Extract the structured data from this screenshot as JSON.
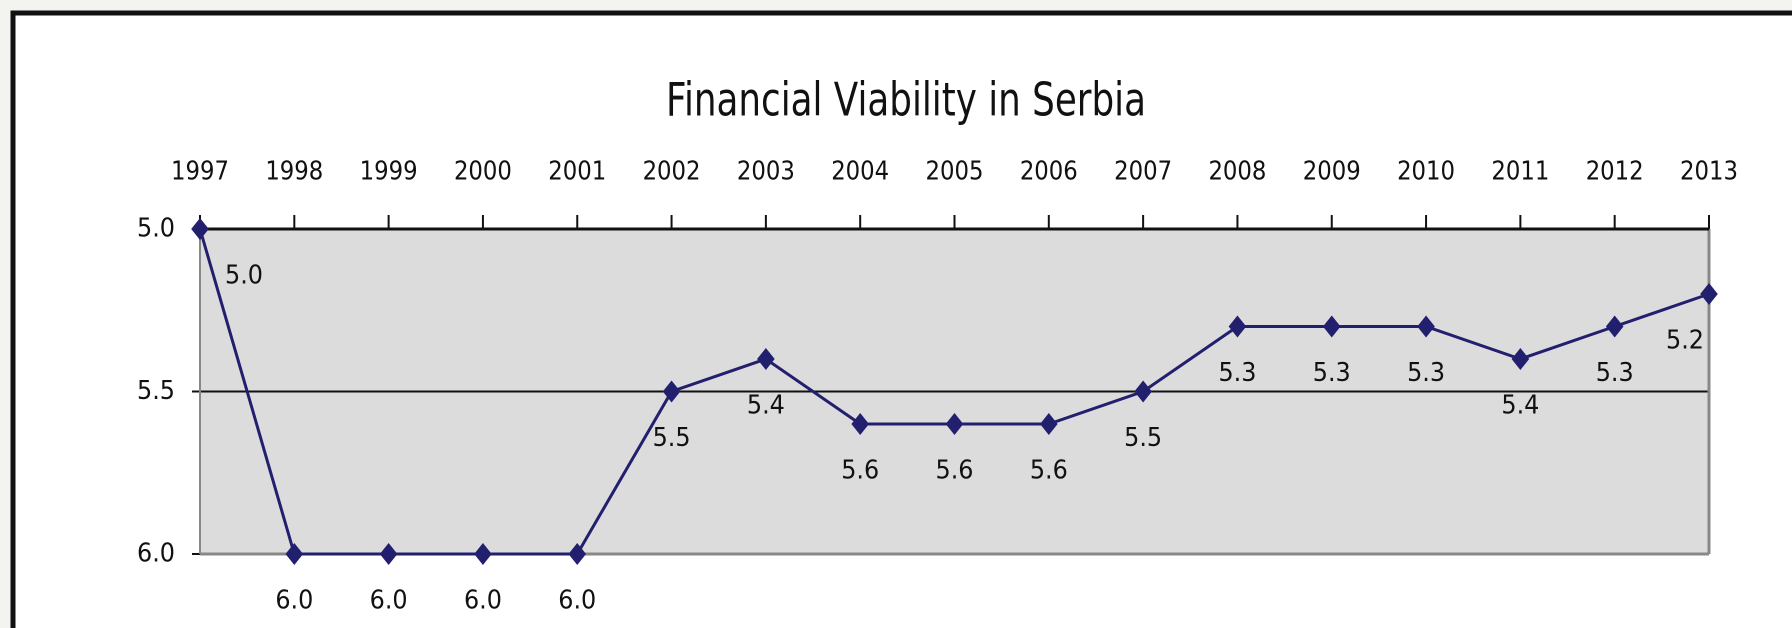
{
  "chart_data": {
    "type": "line",
    "title": "Financial Viability in Serbia",
    "categories": [
      "1997",
      "1998",
      "1999",
      "2000",
      "2001",
      "2002",
      "2003",
      "2004",
      "2005",
      "2006",
      "2007",
      "2008",
      "2009",
      "2010",
      "2011",
      "2012",
      "2013"
    ],
    "values": [
      5.0,
      6.0,
      6.0,
      6.0,
      6.0,
      5.5,
      5.4,
      5.6,
      5.6,
      5.6,
      5.5,
      5.3,
      5.3,
      5.3,
      5.4,
      5.3,
      5.2
    ],
    "value_labels": [
      "5.0",
      "6.0",
      "6.0",
      "6.0",
      "6.0",
      "5.5",
      "5.4",
      "5.6",
      "5.6",
      "5.6",
      "5.5",
      "5.3",
      "5.3",
      "5.3",
      "5.4",
      "5.3",
      "5.2"
    ],
    "color": "#22206e",
    "ylim": [
      5,
      6
    ],
    "y_inverted": true,
    "yticks": [
      {
        "value": 5,
        "label": "5.0"
      },
      {
        "value": 5.5,
        "label": "5.5"
      },
      {
        "value": 6,
        "label": "6.0"
      }
    ],
    "grid": true
  }
}
